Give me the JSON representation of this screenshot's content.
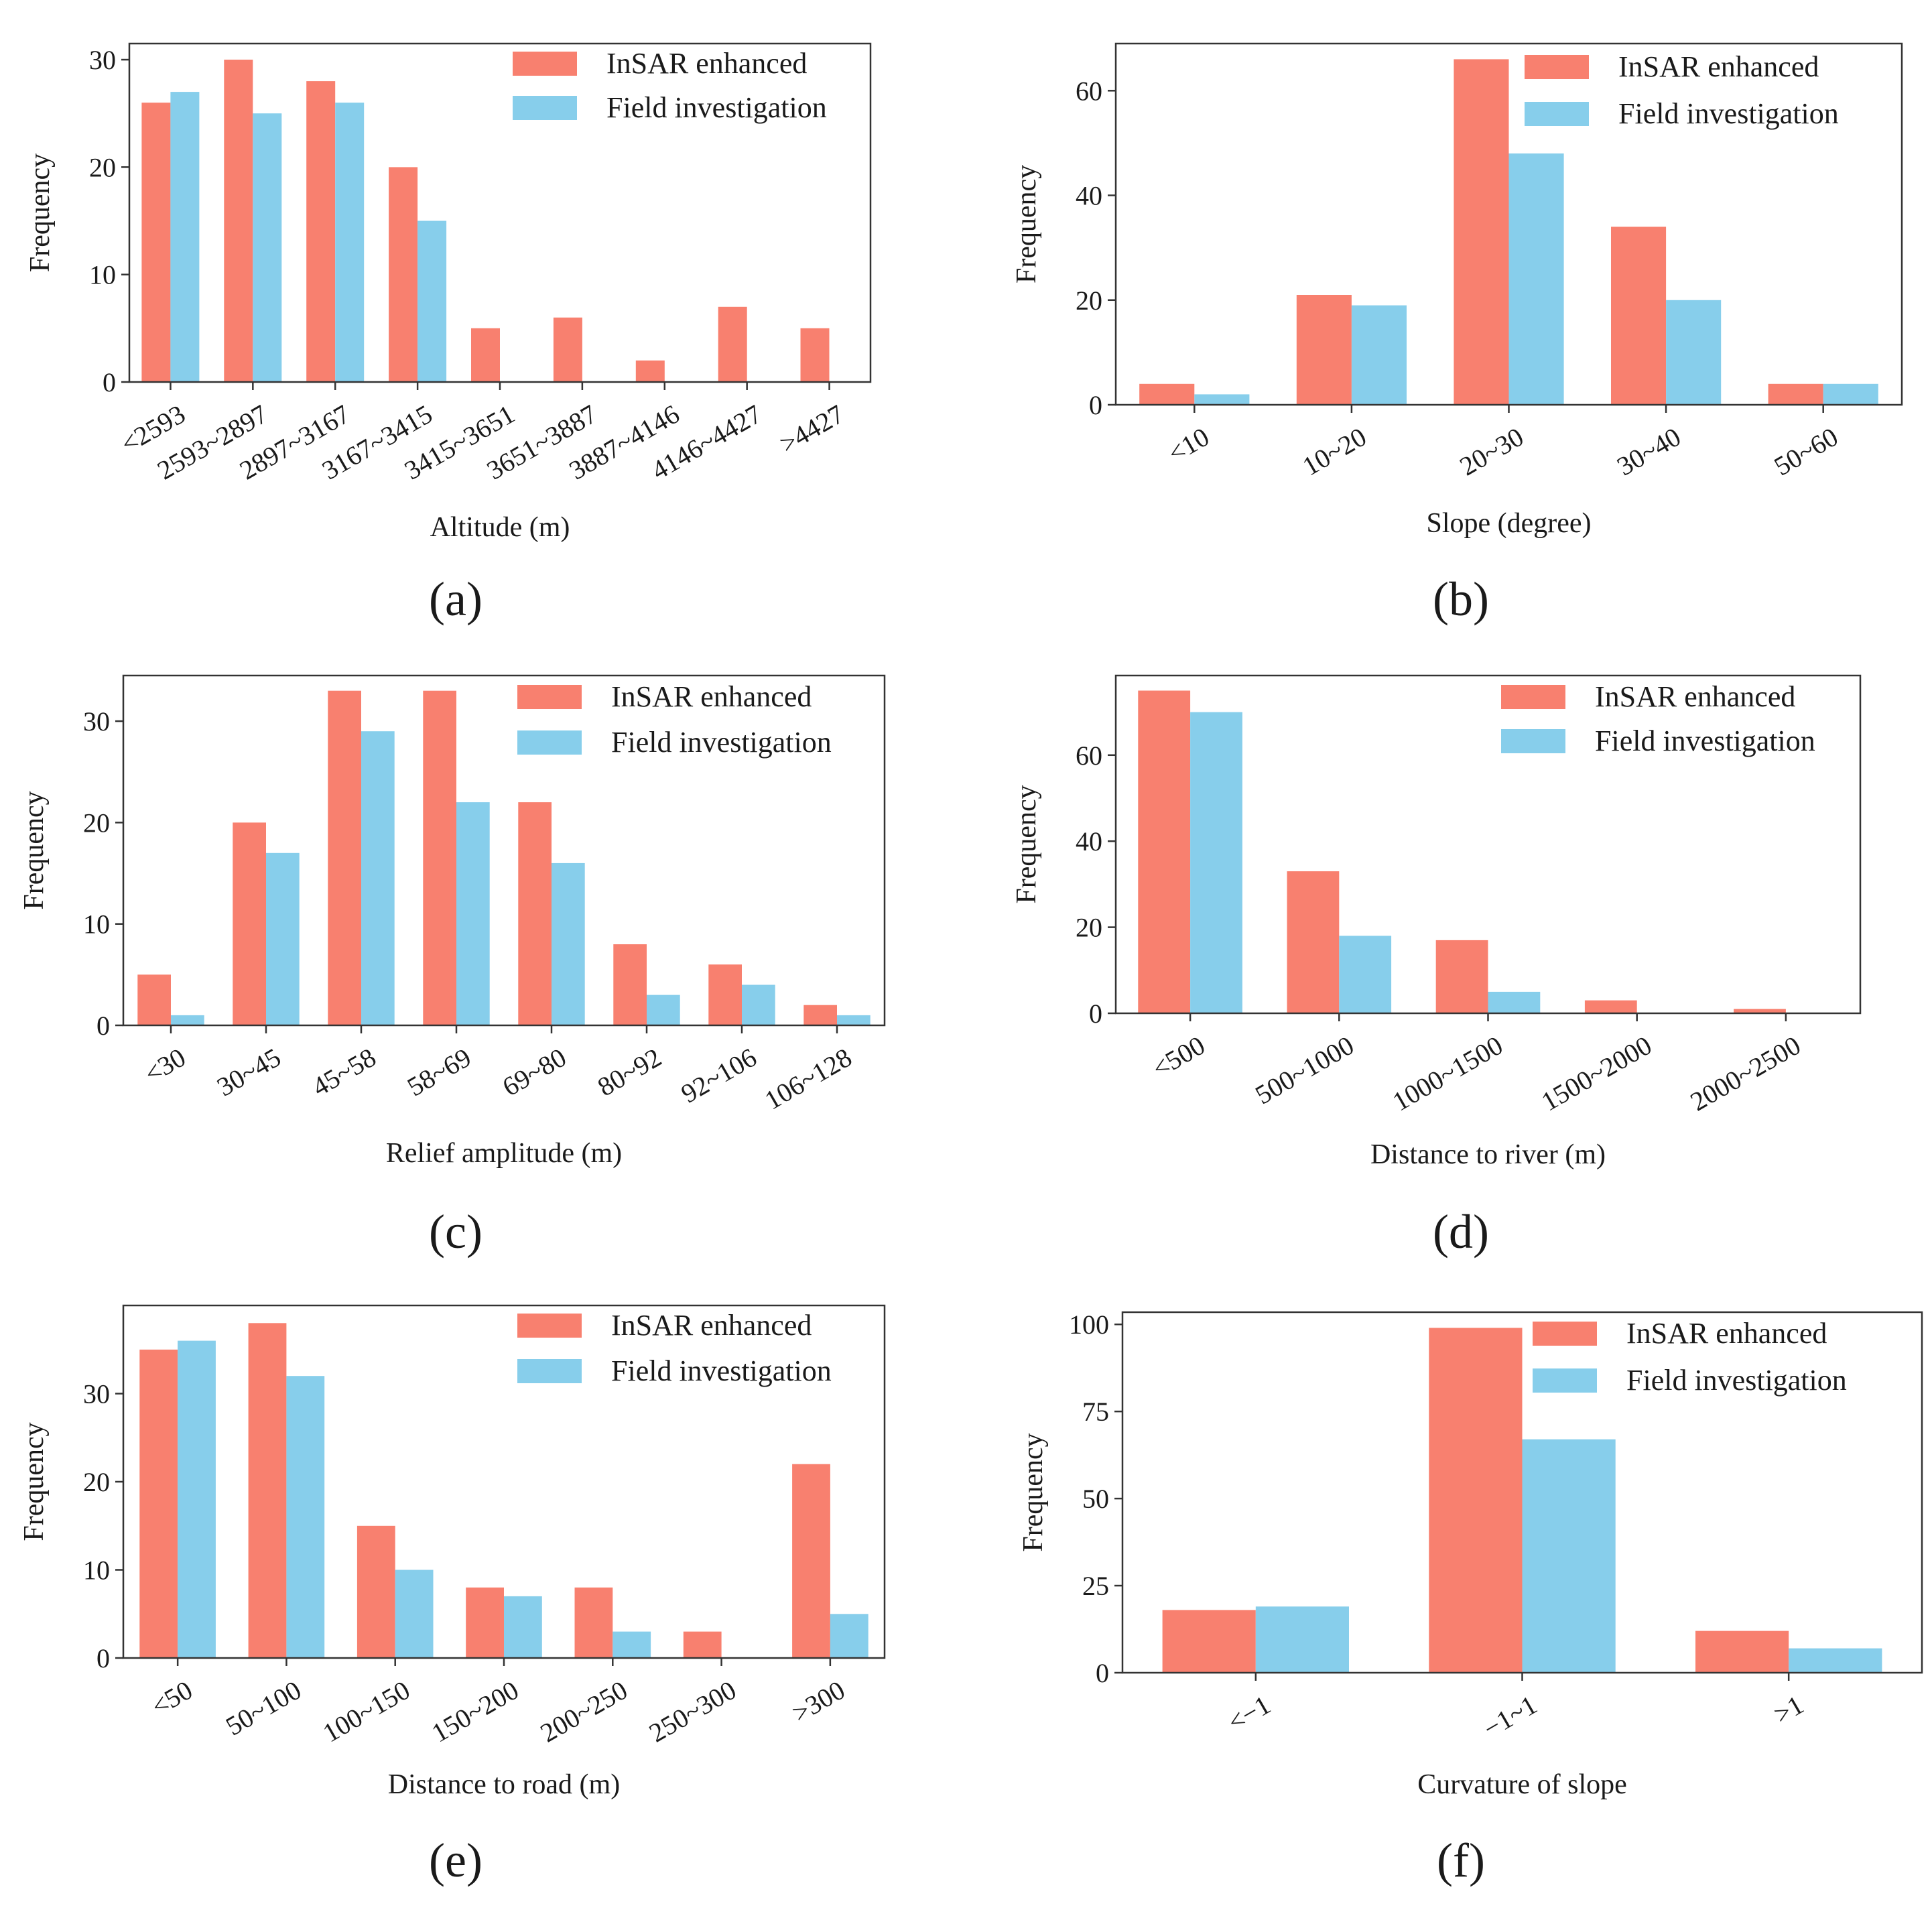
{
  "colors": {
    "insar": "#F8806F",
    "field": "#87CEEB",
    "axis": "#333333"
  },
  "chart_data": [
    {
      "id": "a",
      "type": "bar",
      "panel_label": "(a)",
      "xlabel": "Altitude (m)",
      "ylabel": "Frequency",
      "ylim": [
        0,
        31.5
      ],
      "yticks": [
        0,
        10,
        20,
        30
      ],
      "categories": [
        "<2593",
        "2593~2897",
        "2897~3167",
        "3167~3415",
        "3415~3651",
        "3651~3887",
        "3887~4146",
        "4146~4427",
        ">4427"
      ],
      "series": [
        {
          "name": "InSAR enhanced",
          "values": [
            26,
            30,
            28,
            20,
            5,
            6,
            2,
            7,
            5
          ]
        },
        {
          "name": "Field investigation",
          "values": [
            27,
            25,
            26,
            15,
            0,
            0,
            0,
            0,
            0
          ]
        }
      ],
      "legend": "top-right"
    },
    {
      "id": "b",
      "type": "bar",
      "panel_label": "(b)",
      "xlabel": "Slope (degree)",
      "ylabel": "Frequency",
      "ylim": [
        0,
        69
      ],
      "yticks": [
        0,
        20,
        40,
        60
      ],
      "categories": [
        "<10",
        "10~20",
        "20~30",
        "30~40",
        "50~60"
      ],
      "series": [
        {
          "name": "InSAR enhanced",
          "values": [
            4,
            21,
            66,
            34,
            4
          ]
        },
        {
          "name": "Field investigation",
          "values": [
            2,
            19,
            48,
            20,
            4
          ]
        }
      ],
      "legend": "top-right"
    },
    {
      "id": "c",
      "type": "bar",
      "panel_label": "(c)",
      "xlabel": "Relief amplitude (m)",
      "ylabel": "Frequency",
      "ylim": [
        0,
        34.5
      ],
      "yticks": [
        0,
        10,
        20,
        30
      ],
      "categories": [
        "<30",
        "30~45",
        "45~58",
        "58~69",
        "69~80",
        "80~92",
        "92~106",
        "106~128"
      ],
      "series": [
        {
          "name": "InSAR enhanced",
          "values": [
            5,
            20,
            33,
            33,
            22,
            8,
            6,
            2
          ]
        },
        {
          "name": "Field investigation",
          "values": [
            1,
            17,
            29,
            22,
            16,
            3,
            4,
            1
          ]
        }
      ],
      "legend": "top-right"
    },
    {
      "id": "d",
      "type": "bar",
      "panel_label": "(d)",
      "xlabel": "Distance to river (m)",
      "ylabel": "Frequency",
      "ylim": [
        0,
        78.5
      ],
      "yticks": [
        0,
        20,
        40,
        60
      ],
      "categories": [
        "<500",
        "500~1000",
        "1000~1500",
        "1500~2000",
        "2000~2500"
      ],
      "series": [
        {
          "name": "InSAR enhanced",
          "values": [
            75,
            33,
            17,
            3,
            1
          ]
        },
        {
          "name": "Field investigation",
          "values": [
            70,
            18,
            5,
            0,
            0
          ]
        }
      ],
      "legend": "top-right"
    },
    {
      "id": "e",
      "type": "bar",
      "panel_label": "(e)",
      "xlabel": "Distance to road (m)",
      "ylabel": "Frequency",
      "ylim": [
        0,
        40
      ],
      "yticks": [
        0,
        10,
        20,
        30
      ],
      "categories": [
        "<50",
        "50~100",
        "100~150",
        "150~200",
        "200~250",
        "250~300",
        ">300"
      ],
      "series": [
        {
          "name": "InSAR enhanced",
          "values": [
            35,
            38,
            15,
            8,
            8,
            3,
            22
          ]
        },
        {
          "name": "Field investigation",
          "values": [
            36,
            32,
            10,
            7,
            3,
            0,
            5
          ]
        }
      ],
      "legend": "top-right"
    },
    {
      "id": "f",
      "type": "bar",
      "panel_label": "(f)",
      "xlabel": "Curvature of slope",
      "ylabel": "Frequency",
      "ylim": [
        0,
        103.5
      ],
      "yticks": [
        0,
        25,
        50,
        75,
        100
      ],
      "categories": [
        "<−1",
        "−1~1",
        ">1"
      ],
      "series": [
        {
          "name": "InSAR enhanced",
          "values": [
            18,
            99,
            12
          ]
        },
        {
          "name": "Field investigation",
          "values": [
            19,
            67,
            7
          ]
        }
      ],
      "legend": "top-right"
    }
  ]
}
